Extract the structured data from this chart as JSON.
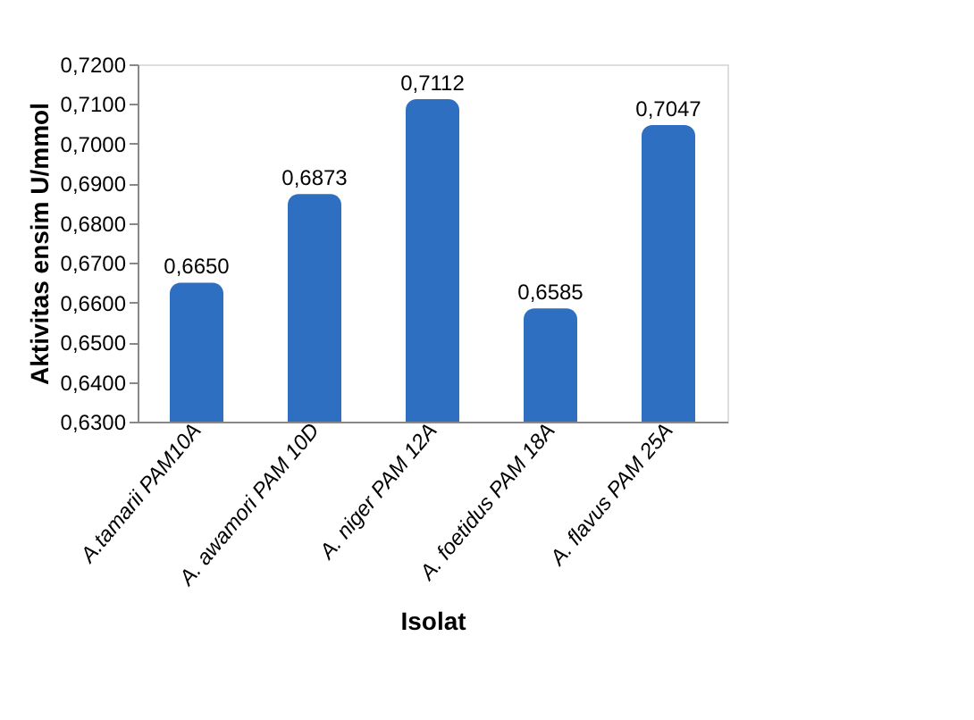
{
  "chart_data": {
    "type": "bar",
    "xlabel": "Isolat",
    "ylabel": "Aktivitas ensim U/mmol",
    "categories": [
      "A.tamarii  PAM10A",
      "A. awamori PAM 10D",
      "A. niger PAM 12A",
      "A. foetidus  PAM 18A",
      "A. flavus PAM 25A"
    ],
    "values": [
      0.665,
      0.6873,
      0.7112,
      0.6585,
      0.7047
    ],
    "value_labels": [
      "0,6650",
      "0,6873",
      "0,7112",
      "0,6585",
      "0,7047"
    ],
    "color": "#2f6fc1",
    "ylim": [
      0.63,
      0.72
    ],
    "yticks": [
      {
        "value": 0.63,
        "label": "0,6300"
      },
      {
        "value": 0.64,
        "label": "0,6400"
      },
      {
        "value": 0.65,
        "label": "0,6500"
      },
      {
        "value": 0.66,
        "label": "0,6600"
      },
      {
        "value": 0.67,
        "label": "0,6700"
      },
      {
        "value": 0.68,
        "label": "0,6800"
      },
      {
        "value": 0.69,
        "label": "0,6900"
      },
      {
        "value": 0.7,
        "label": "0,7000"
      },
      {
        "value": 0.71,
        "label": "0,7100"
      },
      {
        "value": 0.72,
        "label": "0,7200"
      }
    ],
    "grid": false
  }
}
